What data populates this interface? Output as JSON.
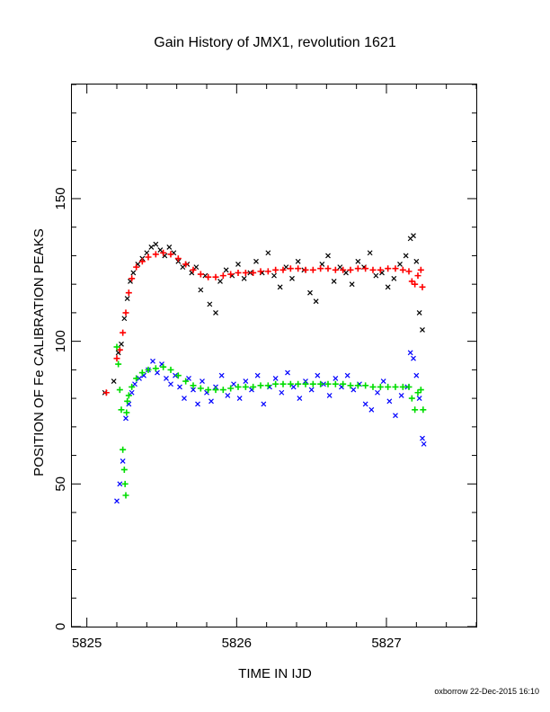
{
  "chart_data": {
    "type": "scatter",
    "title": "Gain History of JMX1, revolution 1621",
    "xlabel": "TIME IN IJD",
    "ylabel": "POSITION OF Fe CALIBRATION PEAKS",
    "xlim": [
      5824.9,
      5827.6
    ],
    "ylim": [
      0,
      190
    ],
    "xticks": [
      5825,
      5826,
      5827
    ],
    "yticks": [
      0,
      50,
      100,
      150
    ],
    "grid": false,
    "legend": "none",
    "footer": "oxborrow 22-Dec-2015 16:10",
    "series": [
      {
        "marker": "x",
        "color": "#000000",
        "points": [
          [
            5825.12,
            82
          ],
          [
            5825.18,
            86
          ],
          [
            5825.21,
            96
          ],
          [
            5825.23,
            99
          ],
          [
            5825.25,
            108
          ],
          [
            5825.27,
            115
          ],
          [
            5825.29,
            121
          ],
          [
            5825.31,
            124
          ],
          [
            5825.34,
            127
          ],
          [
            5825.37,
            129
          ],
          [
            5825.4,
            131
          ],
          [
            5825.43,
            133
          ],
          [
            5825.46,
            134
          ],
          [
            5825.49,
            132
          ],
          [
            5825.52,
            130
          ],
          [
            5825.55,
            133
          ],
          [
            5825.58,
            131
          ],
          [
            5825.61,
            128
          ],
          [
            5825.64,
            126
          ],
          [
            5825.67,
            127
          ],
          [
            5825.7,
            124
          ],
          [
            5825.73,
            126
          ],
          [
            5825.76,
            118
          ],
          [
            5825.79,
            123
          ],
          [
            5825.82,
            113
          ],
          [
            5825.86,
            110
          ],
          [
            5825.89,
            121
          ],
          [
            5825.93,
            125
          ],
          [
            5825.97,
            123
          ],
          [
            5826.01,
            127
          ],
          [
            5826.05,
            122
          ],
          [
            5826.09,
            124
          ],
          [
            5826.13,
            128
          ],
          [
            5826.17,
            124
          ],
          [
            5826.21,
            131
          ],
          [
            5826.25,
            123
          ],
          [
            5826.29,
            119
          ],
          [
            5826.33,
            126
          ],
          [
            5826.37,
            122
          ],
          [
            5826.41,
            128
          ],
          [
            5826.45,
            125
          ],
          [
            5826.49,
            117
          ],
          [
            5826.53,
            114
          ],
          [
            5826.57,
            127
          ],
          [
            5826.61,
            130
          ],
          [
            5826.65,
            121
          ],
          [
            5826.69,
            126
          ],
          [
            5826.73,
            124
          ],
          [
            5826.77,
            120
          ],
          [
            5826.81,
            128
          ],
          [
            5826.85,
            126
          ],
          [
            5826.89,
            131
          ],
          [
            5826.93,
            123
          ],
          [
            5826.97,
            124
          ],
          [
            5827.01,
            119
          ],
          [
            5827.05,
            122
          ],
          [
            5827.09,
            127
          ],
          [
            5827.13,
            130
          ],
          [
            5827.16,
            136
          ],
          [
            5827.18,
            137
          ],
          [
            5827.2,
            128
          ],
          [
            5827.22,
            110
          ],
          [
            5827.24,
            104
          ]
        ]
      },
      {
        "marker": "+",
        "color": "#ff0000",
        "points": [
          [
            5825.13,
            82
          ],
          [
            5825.2,
            94
          ],
          [
            5825.22,
            97
          ],
          [
            5825.24,
            103
          ],
          [
            5825.26,
            110
          ],
          [
            5825.28,
            117
          ],
          [
            5825.3,
            122
          ],
          [
            5825.33,
            126
          ],
          [
            5825.37,
            128
          ],
          [
            5825.41,
            129.5
          ],
          [
            5825.46,
            130.5
          ],
          [
            5825.51,
            131
          ],
          [
            5825.56,
            130.5
          ],
          [
            5825.61,
            129
          ],
          [
            5825.66,
            127
          ],
          [
            5825.71,
            125
          ],
          [
            5825.76,
            123.5
          ],
          [
            5825.81,
            122.5
          ],
          [
            5825.86,
            122.5
          ],
          [
            5825.91,
            123
          ],
          [
            5825.96,
            123.5
          ],
          [
            5826.01,
            124
          ],
          [
            5826.06,
            124
          ],
          [
            5826.11,
            124
          ],
          [
            5826.16,
            124.5
          ],
          [
            5826.21,
            124.5
          ],
          [
            5826.26,
            125
          ],
          [
            5826.31,
            125
          ],
          [
            5826.36,
            125.5
          ],
          [
            5826.41,
            125.5
          ],
          [
            5826.46,
            125
          ],
          [
            5826.51,
            125
          ],
          [
            5826.56,
            125.5
          ],
          [
            5826.61,
            125.5
          ],
          [
            5826.66,
            125
          ],
          [
            5826.71,
            125
          ],
          [
            5826.76,
            125
          ],
          [
            5826.81,
            125.5
          ],
          [
            5826.86,
            125.5
          ],
          [
            5826.91,
            125
          ],
          [
            5826.96,
            125
          ],
          [
            5827.01,
            125.5
          ],
          [
            5827.06,
            125.5
          ],
          [
            5827.11,
            125
          ],
          [
            5827.15,
            124.5
          ],
          [
            5827.17,
            121
          ],
          [
            5827.19,
            120
          ],
          [
            5827.21,
            123
          ],
          [
            5827.23,
            125
          ],
          [
            5827.24,
            119
          ]
        ]
      },
      {
        "marker": "x",
        "color": "#0000ff",
        "points": [
          [
            5825.2,
            44
          ],
          [
            5825.22,
            50
          ],
          [
            5825.24,
            58
          ],
          [
            5825.26,
            73
          ],
          [
            5825.28,
            78
          ],
          [
            5825.3,
            82
          ],
          [
            5825.32,
            85
          ],
          [
            5825.35,
            87
          ],
          [
            5825.38,
            88
          ],
          [
            5825.41,
            90
          ],
          [
            5825.44,
            93
          ],
          [
            5825.47,
            89
          ],
          [
            5825.5,
            92
          ],
          [
            5825.53,
            87
          ],
          [
            5825.56,
            85
          ],
          [
            5825.59,
            88
          ],
          [
            5825.62,
            84
          ],
          [
            5825.65,
            80
          ],
          [
            5825.68,
            87
          ],
          [
            5825.71,
            83
          ],
          [
            5825.74,
            78
          ],
          [
            5825.77,
            86
          ],
          [
            5825.8,
            82
          ],
          [
            5825.83,
            79
          ],
          [
            5825.86,
            84
          ],
          [
            5825.9,
            88
          ],
          [
            5825.94,
            81
          ],
          [
            5825.98,
            85
          ],
          [
            5826.02,
            80
          ],
          [
            5826.06,
            86
          ],
          [
            5826.1,
            83
          ],
          [
            5826.14,
            88
          ],
          [
            5826.18,
            78
          ],
          [
            5826.22,
            84
          ],
          [
            5826.26,
            87
          ],
          [
            5826.3,
            82
          ],
          [
            5826.34,
            89
          ],
          [
            5826.38,
            84
          ],
          [
            5826.42,
            80
          ],
          [
            5826.46,
            86
          ],
          [
            5826.5,
            83
          ],
          [
            5826.54,
            88
          ],
          [
            5826.58,
            85
          ],
          [
            5826.62,
            81
          ],
          [
            5826.66,
            87
          ],
          [
            5826.7,
            84
          ],
          [
            5826.74,
            88
          ],
          [
            5826.78,
            83
          ],
          [
            5826.82,
            85
          ],
          [
            5826.86,
            78
          ],
          [
            5826.9,
            76
          ],
          [
            5826.94,
            82
          ],
          [
            5826.98,
            86
          ],
          [
            5827.02,
            79
          ],
          [
            5827.06,
            74
          ],
          [
            5827.1,
            81
          ],
          [
            5827.14,
            84
          ],
          [
            5827.16,
            96
          ],
          [
            5827.18,
            94
          ],
          [
            5827.2,
            88
          ],
          [
            5827.22,
            80
          ],
          [
            5827.24,
            66
          ],
          [
            5827.25,
            64
          ]
        ]
      },
      {
        "marker": "+",
        "color": "#00dd00",
        "points": [
          [
            5825.2,
            98
          ],
          [
            5825.21,
            92
          ],
          [
            5825.22,
            83
          ],
          [
            5825.23,
            76
          ],
          [
            5825.24,
            62
          ],
          [
            5825.25,
            55
          ],
          [
            5825.255,
            50
          ],
          [
            5825.26,
            46
          ],
          [
            5825.265,
            75
          ],
          [
            5825.27,
            79
          ],
          [
            5825.28,
            81
          ],
          [
            5825.3,
            84
          ],
          [
            5825.33,
            87
          ],
          [
            5825.37,
            89
          ],
          [
            5825.41,
            90
          ],
          [
            5825.46,
            90.5
          ],
          [
            5825.51,
            91
          ],
          [
            5825.56,
            90
          ],
          [
            5825.61,
            88
          ],
          [
            5825.66,
            86
          ],
          [
            5825.71,
            84.5
          ],
          [
            5825.76,
            83.5
          ],
          [
            5825.81,
            83
          ],
          [
            5825.86,
            83
          ],
          [
            5825.91,
            83
          ],
          [
            5825.96,
            83.5
          ],
          [
            5826.01,
            84
          ],
          [
            5826.06,
            84
          ],
          [
            5826.11,
            84
          ],
          [
            5826.16,
            84.5
          ],
          [
            5826.21,
            84.5
          ],
          [
            5826.26,
            85
          ],
          [
            5826.31,
            85
          ],
          [
            5826.36,
            85
          ],
          [
            5826.41,
            85
          ],
          [
            5826.46,
            85
          ],
          [
            5826.51,
            85
          ],
          [
            5826.56,
            85
          ],
          [
            5826.61,
            85
          ],
          [
            5826.66,
            85
          ],
          [
            5826.71,
            85
          ],
          [
            5826.76,
            84.5
          ],
          [
            5826.81,
            84.5
          ],
          [
            5826.86,
            84.5
          ],
          [
            5826.91,
            84
          ],
          [
            5826.96,
            84
          ],
          [
            5827.01,
            84
          ],
          [
            5827.06,
            84
          ],
          [
            5827.11,
            84
          ],
          [
            5827.15,
            84
          ],
          [
            5827.17,
            80
          ],
          [
            5827.19,
            76
          ],
          [
            5827.21,
            82
          ],
          [
            5827.23,
            83
          ],
          [
            5827.245,
            76
          ]
        ]
      }
    ]
  }
}
